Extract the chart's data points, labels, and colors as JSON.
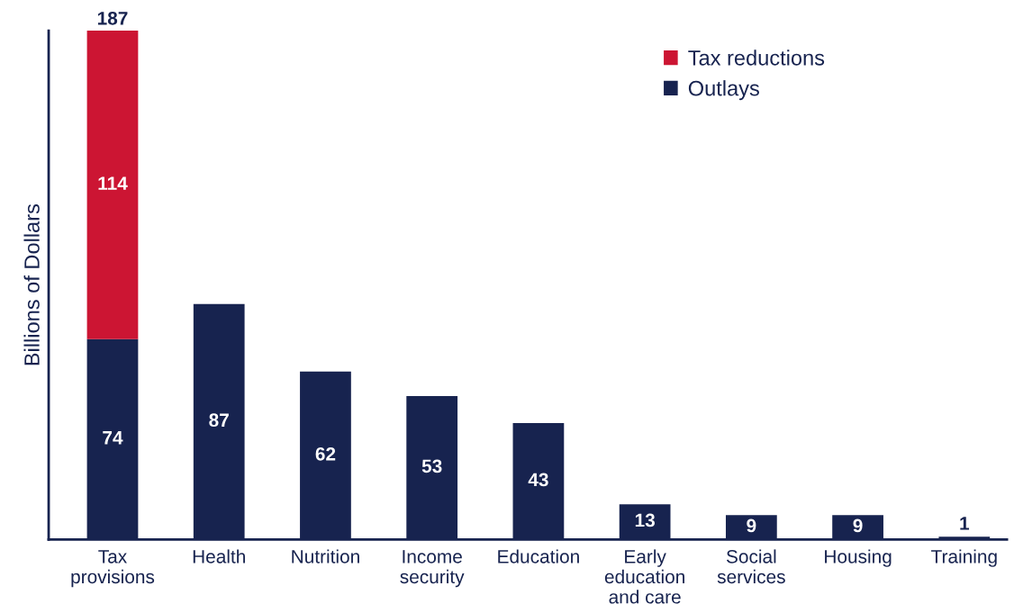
{
  "chart_data": {
    "type": "bar",
    "stacked": true,
    "ylabel": "Billions of Dollars",
    "categories": [
      "Tax\nprovisions",
      "Health",
      "Nutrition",
      "Income\nsecurity",
      "Education",
      "Early\neducation\nand care",
      "Social\nservices",
      "Housing",
      "Training"
    ],
    "series": [
      {
        "name": "Outlays",
        "color": "#17234f",
        "values": [
          74,
          87,
          62,
          53,
          43,
          13,
          9,
          9,
          1
        ],
        "value_labels": [
          "74",
          "87",
          "62",
          "53",
          "43",
          "13",
          "9",
          "9",
          "1"
        ]
      },
      {
        "name": "Tax reductions",
        "color": "#cc1533",
        "values": [
          114,
          null,
          null,
          null,
          null,
          null,
          null,
          null,
          null
        ],
        "value_labels": [
          "114",
          null,
          null,
          null,
          null,
          null,
          null,
          null,
          null
        ]
      }
    ],
    "totals": [
      "187",
      null,
      null,
      null,
      null,
      null,
      null,
      null,
      null
    ],
    "ylim": [
      0,
      188
    ],
    "tick_labels": "x",
    "legend": "top right",
    "grid": false
  }
}
